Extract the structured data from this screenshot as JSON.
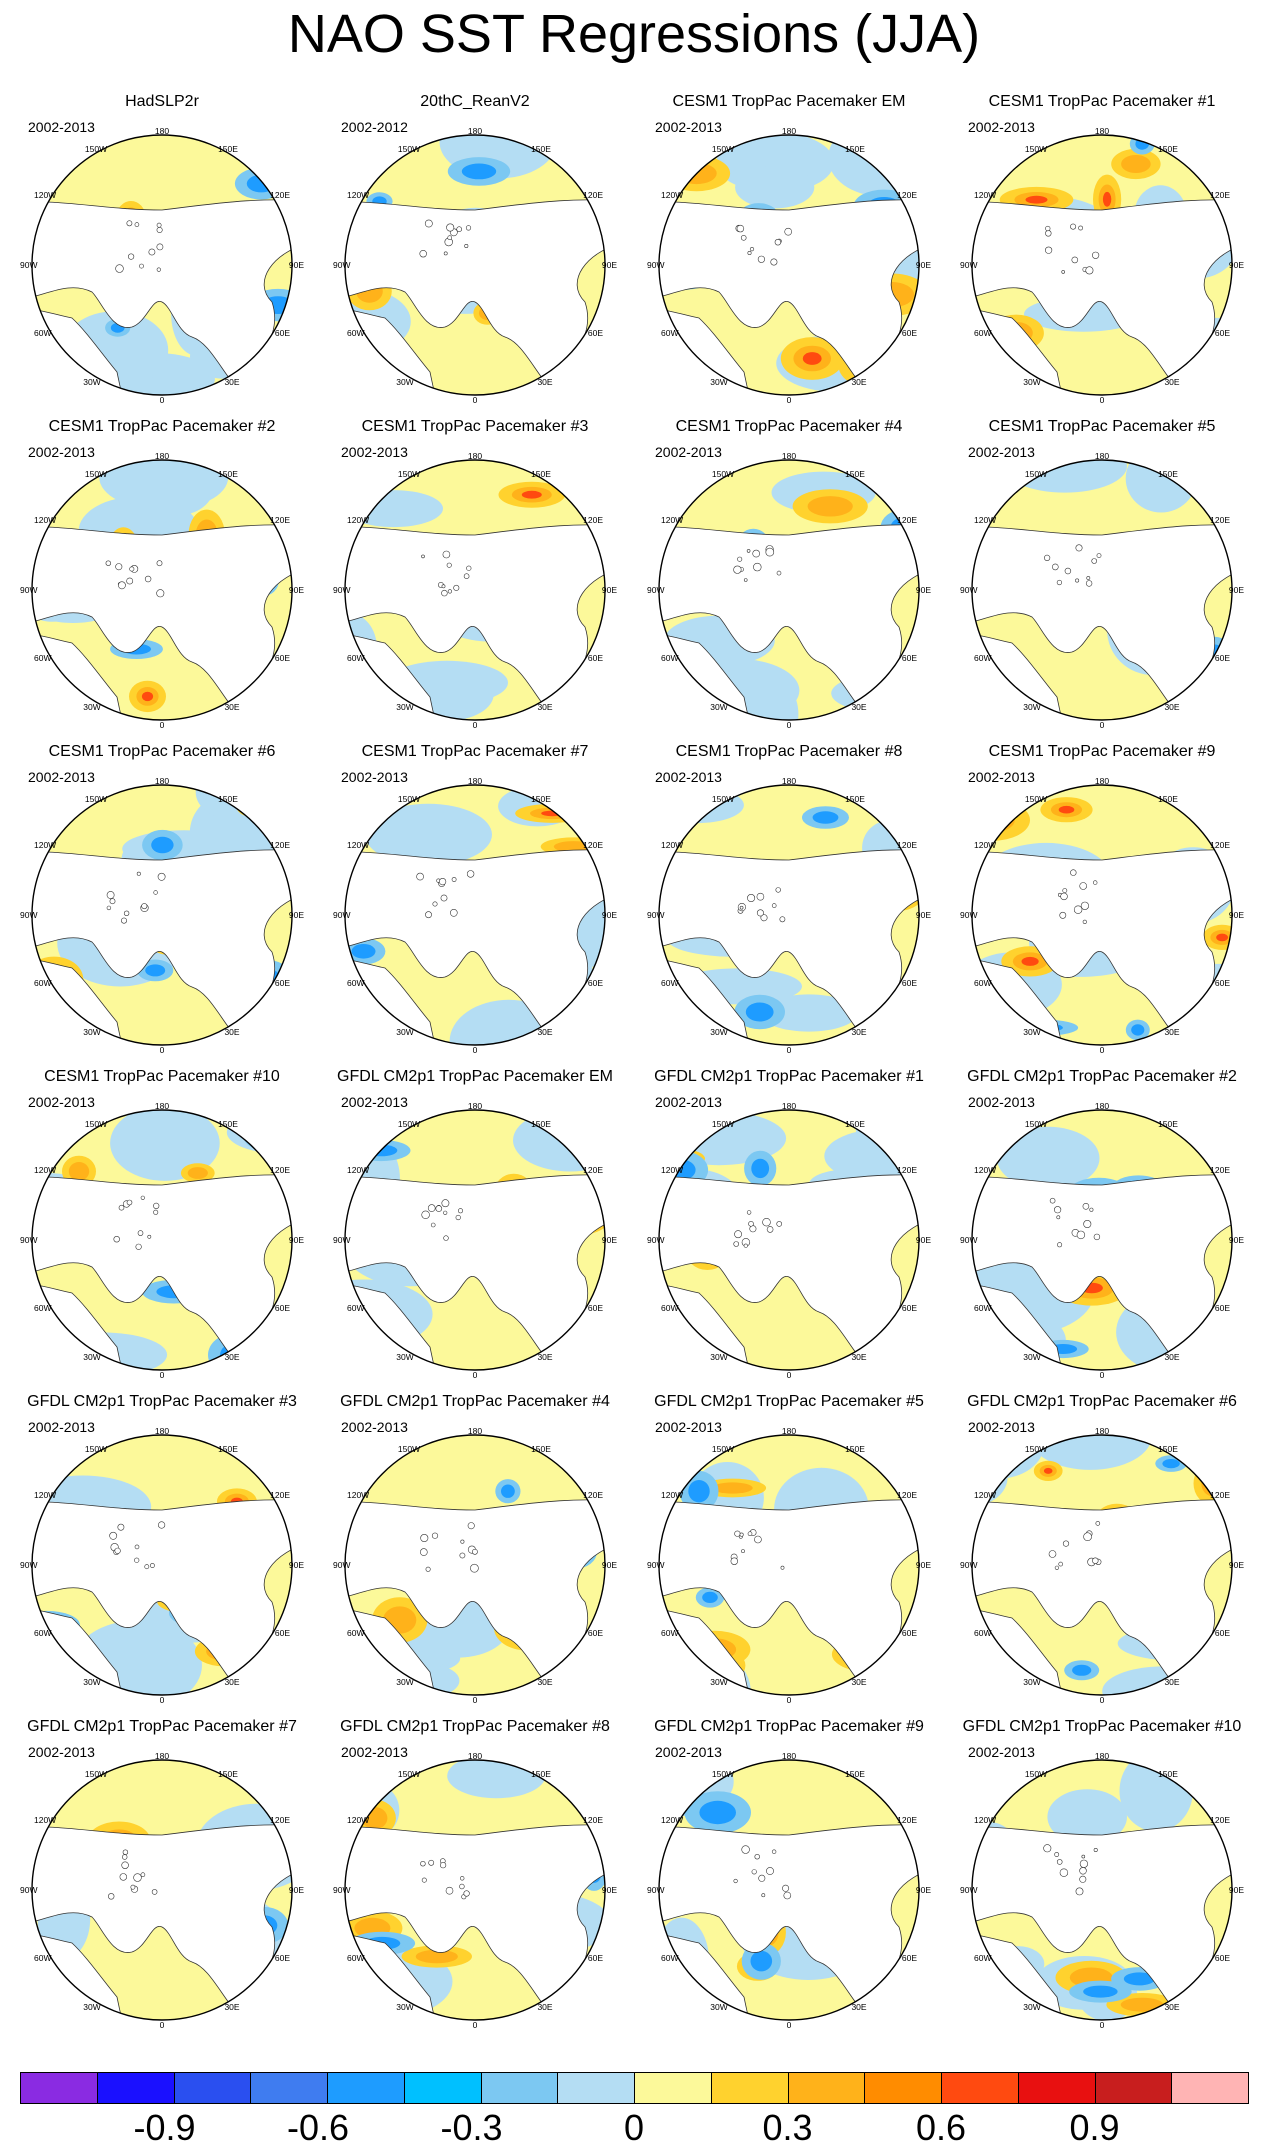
{
  "title": "NAO SST Regressions (JJA)",
  "lon_labels": {
    "top": "180",
    "top_left": "150W",
    "top_right": "150E",
    "upper_left": "120W",
    "upper_right": "120E",
    "mid_left": "90W",
    "mid_right": "90E",
    "lower_left": "60W",
    "lower_right": "60E",
    "bottom_left": "30W",
    "bottom_right": "30E",
    "bottom": "0"
  },
  "panels": [
    {
      "title": "HadSLP2r",
      "period": "2002-2013"
    },
    {
      "title": "20thC_ReanV2",
      "period": "2002-2012"
    },
    {
      "title": "CESM1 TropPac Pacemaker EM",
      "period": "2002-2013"
    },
    {
      "title": "CESM1 TropPac Pacemaker #1",
      "period": "2002-2013"
    },
    {
      "title": "CESM1 TropPac Pacemaker #2",
      "period": "2002-2013"
    },
    {
      "title": "CESM1 TropPac Pacemaker #3",
      "period": "2002-2013"
    },
    {
      "title": "CESM1 TropPac Pacemaker #4",
      "period": "2002-2013"
    },
    {
      "title": "CESM1 TropPac Pacemaker #5",
      "period": "2002-2013"
    },
    {
      "title": "CESM1 TropPac Pacemaker #6",
      "period": "2002-2013"
    },
    {
      "title": "CESM1 TropPac Pacemaker #7",
      "period": "2002-2013"
    },
    {
      "title": "CESM1 TropPac Pacemaker #8",
      "period": "2002-2013"
    },
    {
      "title": "CESM1 TropPac Pacemaker #9",
      "period": "2002-2013"
    },
    {
      "title": "CESM1 TropPac Pacemaker #10",
      "period": "2002-2013"
    },
    {
      "title": "GFDL CM2p1 TropPac Pacemaker EM",
      "period": "2002-2013"
    },
    {
      "title": "GFDL CM2p1 TropPac Pacemaker #1",
      "period": "2002-2013"
    },
    {
      "title": "GFDL CM2p1 TropPac Pacemaker #2",
      "period": "2002-2013"
    },
    {
      "title": "GFDL CM2p1 TropPac Pacemaker #3",
      "period": "2002-2013"
    },
    {
      "title": "GFDL CM2p1 TropPac Pacemaker #4",
      "period": "2002-2013"
    },
    {
      "title": "GFDL CM2p1 TropPac Pacemaker #5",
      "period": "2002-2013"
    },
    {
      "title": "GFDL CM2p1 TropPac Pacemaker #6",
      "period": "2002-2013"
    },
    {
      "title": "GFDL CM2p1 TropPac Pacemaker #7",
      "period": "2002-2013"
    },
    {
      "title": "GFDL CM2p1 TropPac Pacemaker #8",
      "period": "2002-2013"
    },
    {
      "title": "GFDL CM2p1 TropPac Pacemaker #9",
      "period": "2002-2013"
    },
    {
      "title": "GFDL CM2p1 TropPac Pacemaker #10",
      "period": "2002-2013"
    }
  ],
  "colorbar": {
    "colors": [
      "#8a2be2",
      "#1a10ff",
      "#2a4ff0",
      "#3f7cf0",
      "#1e9cff",
      "#00c0ff",
      "#7cc8f2",
      "#b4ddf3",
      "#fcf99a",
      "#ffd22e",
      "#ffb21a",
      "#ff8c00",
      "#ff4a10",
      "#e81010",
      "#c81e1e",
      "#ffb4b4"
    ],
    "labels": [
      "-0.9",
      "-0.6",
      "-0.3",
      "0",
      "0.3",
      "0.6",
      "0.9"
    ]
  },
  "chart_data": {
    "type": "heatmap",
    "title": "NAO SST Regressions (JJA)",
    "projection": "north polar stereographic",
    "panel_count": 24,
    "layout": "6 rows x 4 columns",
    "colorbar_levels": [
      -1.05,
      -0.9,
      -0.75,
      -0.6,
      -0.45,
      -0.3,
      -0.15,
      0,
      0.15,
      0.3,
      0.45,
      0.6,
      0.75,
      0.9,
      1.05
    ],
    "colorbar_tick_labels": [
      "-0.9",
      "-0.6",
      "-0.3",
      "0",
      "0.3",
      "0.6",
      "0.9"
    ]
  }
}
